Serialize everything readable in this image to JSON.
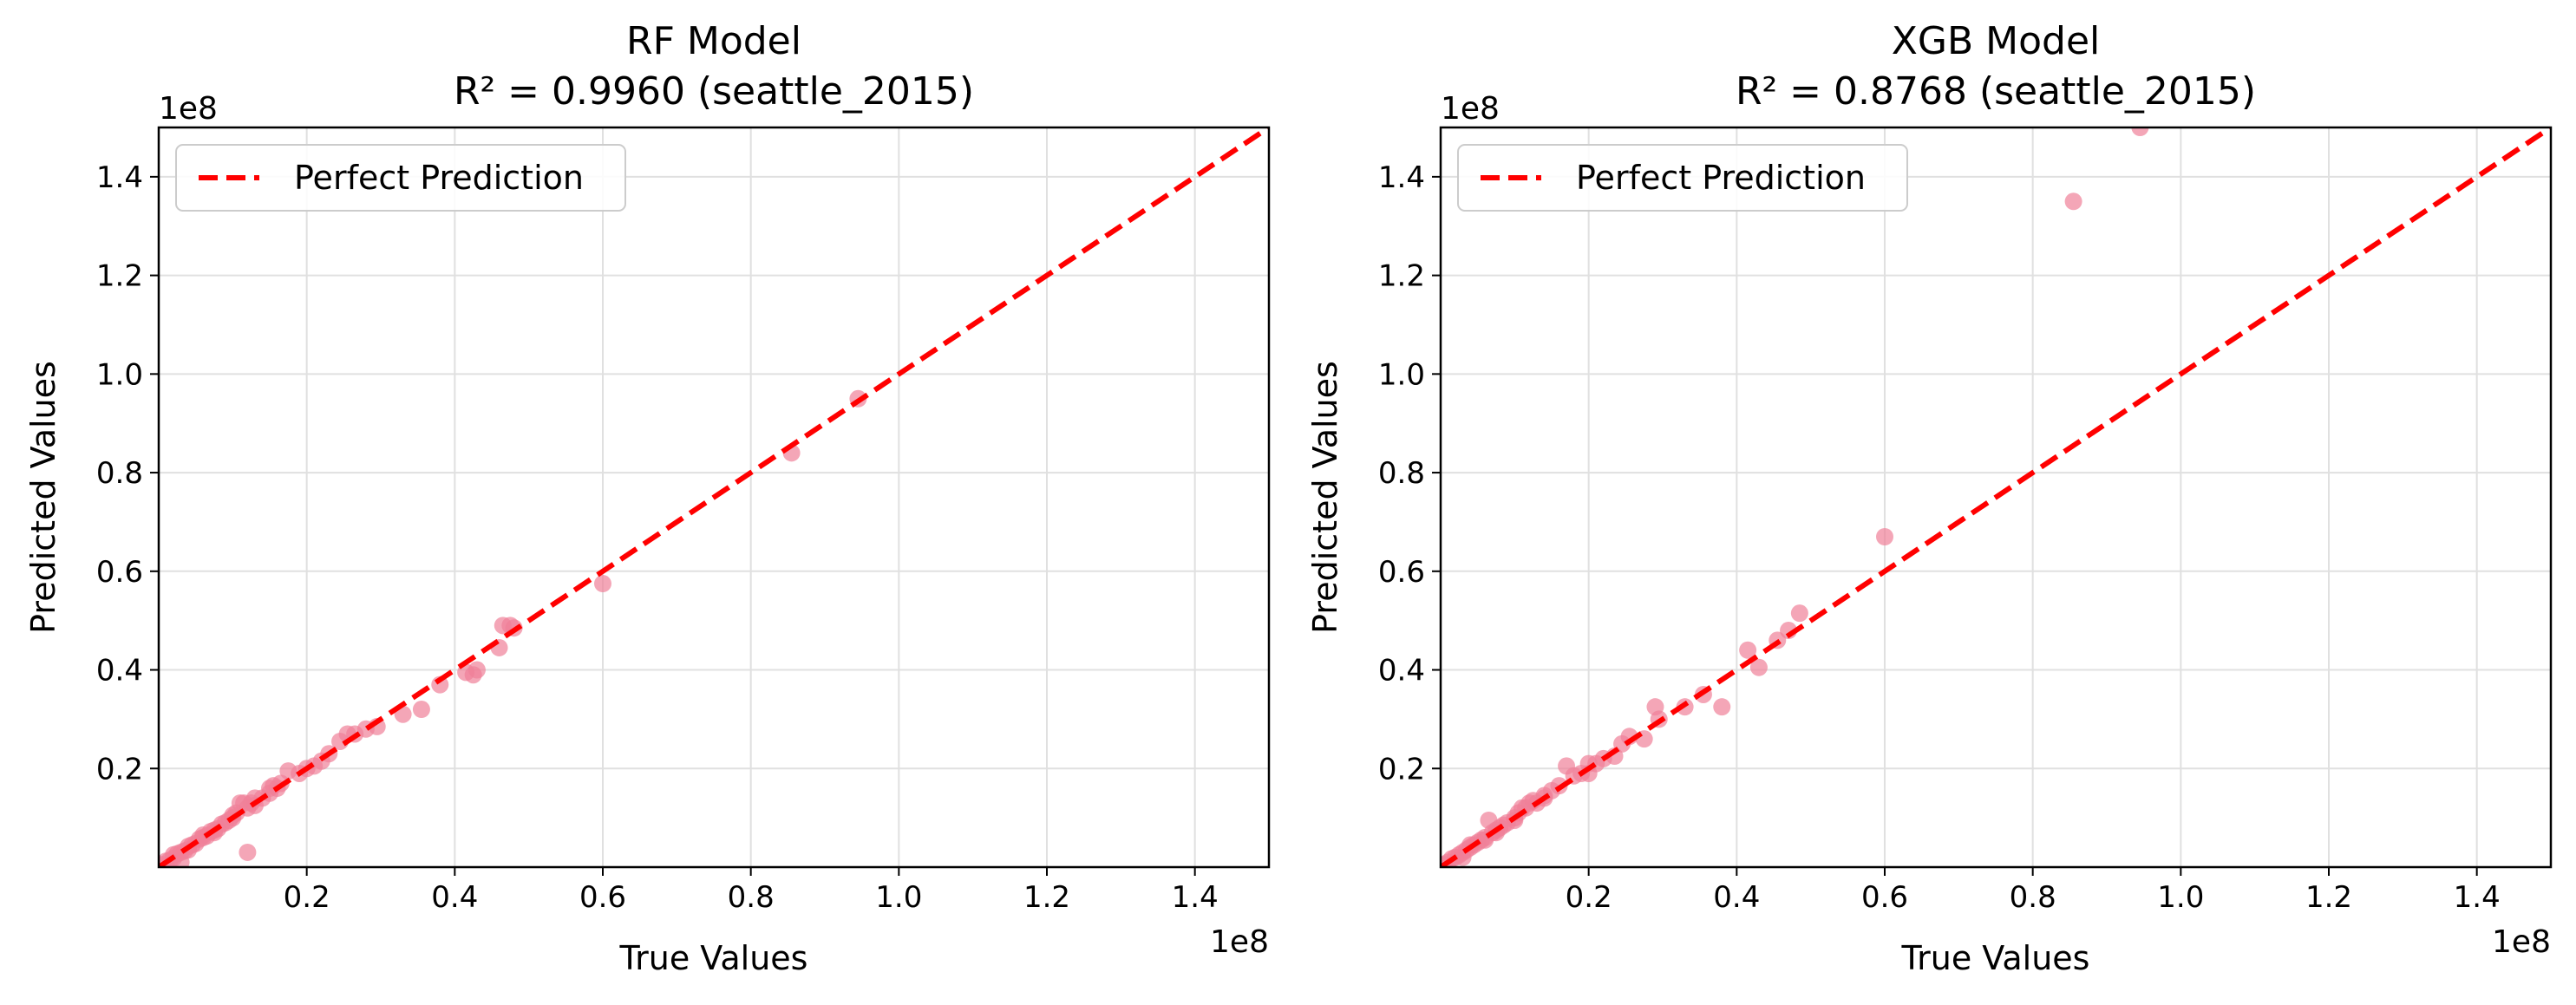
{
  "colors": {
    "scatter": "#f08098",
    "perfect_line": "#ff0000",
    "grid": "#e0e0e0",
    "axes": "#000000"
  },
  "chart_data": [
    {
      "type": "scatter",
      "title_line1": "RF Model",
      "title_line2": "R² = 0.9960 (seattle_2015)",
      "xlabel": "True Values",
      "ylabel": "Predicted Values",
      "x_offset_label": "1e8",
      "y_offset_label": "1e8",
      "xlim": [
        0,
        1.5
      ],
      "ylim": [
        0,
        1.5
      ],
      "xticks": [
        0.2,
        0.4,
        0.6,
        0.8,
        1.0,
        1.2,
        1.4
      ],
      "xtick_labels": [
        "0.2",
        "0.4",
        "0.6",
        "0.8",
        "1.0",
        "1.2",
        "1.4"
      ],
      "yticks": [
        0.2,
        0.4,
        0.6,
        0.8,
        1.0,
        1.2,
        1.4
      ],
      "ytick_labels": [
        "0.2",
        "0.4",
        "0.6",
        "0.8",
        "1.0",
        "1.2",
        "1.4"
      ],
      "grid": true,
      "legend": {
        "position": "top-left",
        "entries": [
          "Perfect Prediction"
        ]
      },
      "points": [
        [
          0.005,
          0.005
        ],
        [
          0.01,
          0.012
        ],
        [
          0.015,
          0.014
        ],
        [
          0.02,
          0.018
        ],
        [
          0.025,
          0.027
        ],
        [
          0.03,
          0.03
        ],
        [
          0.035,
          0.033
        ],
        [
          0.04,
          0.042
        ],
        [
          0.045,
          0.045
        ],
        [
          0.05,
          0.048
        ],
        [
          0.055,
          0.057
        ],
        [
          0.06,
          0.06
        ],
        [
          0.065,
          0.063
        ],
        [
          0.07,
          0.072
        ],
        [
          0.075,
          0.075
        ],
        [
          0.08,
          0.078
        ],
        [
          0.085,
          0.087
        ],
        [
          0.09,
          0.09
        ],
        [
          0.095,
          0.095
        ],
        [
          0.1,
          0.1
        ],
        [
          0.105,
          0.11
        ],
        [
          0.11,
          0.13
        ],
        [
          0.115,
          0.13
        ],
        [
          0.12,
          0.12
        ],
        [
          0.125,
          0.13
        ],
        [
          0.13,
          0.125
        ],
        [
          0.14,
          0.14
        ],
        [
          0.15,
          0.15
        ],
        [
          0.155,
          0.165
        ],
        [
          0.16,
          0.16
        ],
        [
          0.165,
          0.17
        ],
        [
          0.175,
          0.195
        ],
        [
          0.19,
          0.19
        ],
        [
          0.2,
          0.2
        ],
        [
          0.21,
          0.205
        ],
        [
          0.22,
          0.215
        ],
        [
          0.23,
          0.23
        ],
        [
          0.245,
          0.255
        ],
        [
          0.255,
          0.27
        ],
        [
          0.265,
          0.27
        ],
        [
          0.28,
          0.28
        ],
        [
          0.295,
          0.285
        ],
        [
          0.33,
          0.31
        ],
        [
          0.355,
          0.32
        ],
        [
          0.38,
          0.37
        ],
        [
          0.415,
          0.395
        ],
        [
          0.425,
          0.39
        ],
        [
          0.43,
          0.4
        ],
        [
          0.46,
          0.445
        ],
        [
          0.465,
          0.49
        ],
        [
          0.475,
          0.49
        ],
        [
          0.48,
          0.485
        ],
        [
          0.6,
          0.575
        ],
        [
          0.855,
          0.84
        ],
        [
          0.945,
          0.95
        ],
        [
          0.12,
          0.03
        ],
        [
          0.03,
          0.01
        ],
        [
          0.02,
          0.025
        ],
        [
          0.04,
          0.035
        ],
        [
          0.06,
          0.065
        ],
        [
          0.075,
          0.07
        ],
        [
          0.1,
          0.105
        ],
        [
          0.13,
          0.14
        ],
        [
          0.15,
          0.16
        ]
      ]
    },
    {
      "type": "scatter",
      "title_line1": "XGB Model",
      "title_line2": "R² = 0.8768 (seattle_2015)",
      "xlabel": "True Values",
      "ylabel": "Predicted Values",
      "x_offset_label": "1e8",
      "y_offset_label": "1e8",
      "xlim": [
        0,
        1.5
      ],
      "ylim": [
        0,
        1.5
      ],
      "xticks": [
        0.2,
        0.4,
        0.6,
        0.8,
        1.0,
        1.2,
        1.4
      ],
      "xtick_labels": [
        "0.2",
        "0.4",
        "0.6",
        "0.8",
        "1.0",
        "1.2",
        "1.4"
      ],
      "yticks": [
        0.2,
        0.4,
        0.6,
        0.8,
        1.0,
        1.2,
        1.4
      ],
      "ytick_labels": [
        "0.2",
        "0.4",
        "0.6",
        "0.8",
        "1.0",
        "1.2",
        "1.4"
      ],
      "grid": true,
      "legend": {
        "position": "top-left",
        "entries": [
          "Perfect Prediction"
        ]
      },
      "points": [
        [
          0.005,
          0.005
        ],
        [
          0.01,
          0.01
        ],
        [
          0.015,
          0.017
        ],
        [
          0.02,
          0.02
        ],
        [
          0.025,
          0.025
        ],
        [
          0.03,
          0.03
        ],
        [
          0.035,
          0.035
        ],
        [
          0.04,
          0.04
        ],
        [
          0.045,
          0.045
        ],
        [
          0.05,
          0.05
        ],
        [
          0.055,
          0.055
        ],
        [
          0.06,
          0.06
        ],
        [
          0.065,
          0.095
        ],
        [
          0.07,
          0.07
        ],
        [
          0.075,
          0.075
        ],
        [
          0.08,
          0.08
        ],
        [
          0.085,
          0.085
        ],
        [
          0.09,
          0.09
        ],
        [
          0.1,
          0.1
        ],
        [
          0.11,
          0.12
        ],
        [
          0.115,
          0.12
        ],
        [
          0.12,
          0.13
        ],
        [
          0.13,
          0.13
        ],
        [
          0.14,
          0.14
        ],
        [
          0.15,
          0.155
        ],
        [
          0.16,
          0.165
        ],
        [
          0.17,
          0.205
        ],
        [
          0.19,
          0.19
        ],
        [
          0.2,
          0.21
        ],
        [
          0.21,
          0.21
        ],
        [
          0.22,
          0.22
        ],
        [
          0.235,
          0.225
        ],
        [
          0.245,
          0.25
        ],
        [
          0.255,
          0.265
        ],
        [
          0.275,
          0.26
        ],
        [
          0.29,
          0.325
        ],
        [
          0.295,
          0.3
        ],
        [
          0.33,
          0.325
        ],
        [
          0.355,
          0.35
        ],
        [
          0.38,
          0.325
        ],
        [
          0.415,
          0.44
        ],
        [
          0.43,
          0.405
        ],
        [
          0.455,
          0.46
        ],
        [
          0.47,
          0.48
        ],
        [
          0.485,
          0.515
        ],
        [
          0.6,
          0.67
        ],
        [
          0.855,
          1.35
        ],
        [
          0.945,
          1.5
        ],
        [
          0.03,
          0.02
        ],
        [
          0.04,
          0.045
        ],
        [
          0.06,
          0.055
        ],
        [
          0.075,
          0.07
        ],
        [
          0.1,
          0.095
        ],
        [
          0.105,
          0.11
        ],
        [
          0.125,
          0.135
        ],
        [
          0.14,
          0.145
        ],
        [
          0.18,
          0.185
        ],
        [
          0.2,
          0.19
        ]
      ]
    }
  ]
}
